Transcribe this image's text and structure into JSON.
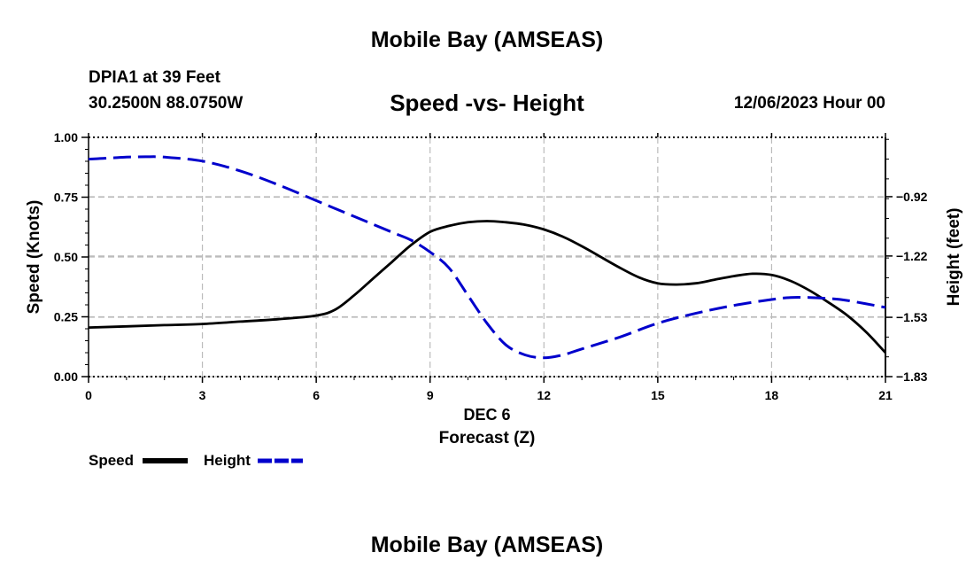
{
  "header": {
    "title": "Mobile Bay (AMSEAS)",
    "station": "DPIA1 at 39 Feet",
    "location": "30.2500N  88.0750W",
    "subtitle": "Speed -vs- Height",
    "datetime": "12/06/2023 Hour 00"
  },
  "footer": {
    "repeat_title": "Mobile Bay (AMSEAS)"
  },
  "chart_data": {
    "type": "line",
    "title": "Speed -vs- Height",
    "xlabel": "Forecast (Z)",
    "x_date_label": "DEC 6",
    "ylabel": "Speed (Knots)",
    "y2label": "Height (feet)",
    "xlim": [
      0,
      21
    ],
    "ylim": [
      0,
      1
    ],
    "y2lim": [
      -1.83,
      -0.62
    ],
    "xticks": [
      0,
      3,
      6,
      9,
      12,
      15,
      18,
      21
    ],
    "xtick_labels": [
      "0",
      "3",
      "6",
      "9",
      "12",
      "15",
      "18",
      "21"
    ],
    "yticks": [
      0,
      0.25,
      0.5,
      0.75,
      1.0
    ],
    "ytick_labels": [
      "0.00",
      "0.25",
      "0.50",
      "0.75",
      "1.00"
    ],
    "y2ticks": [
      -0.92,
      -1.22,
      -1.53,
      -1.83
    ],
    "y2tick_labels": [
      "−0.92",
      "−1.22",
      "−1.53",
      "−1.83"
    ],
    "grid": true,
    "legend_position": "bottom-left",
    "series": [
      {
        "name": "Speed",
        "axis": "left",
        "color": "#000000",
        "style": "solid",
        "x": [
          0,
          1,
          2,
          3,
          4,
          5,
          6,
          6.5,
          7,
          7.5,
          8,
          8.5,
          9,
          9.5,
          10,
          10.5,
          11,
          11.5,
          12,
          12.5,
          13,
          13.5,
          14,
          14.5,
          15,
          15.5,
          16,
          16.5,
          17,
          17.5,
          18,
          18.5,
          19,
          19.5,
          20,
          20.5,
          21
        ],
        "y": [
          0.205,
          0.21,
          0.215,
          0.22,
          0.23,
          0.24,
          0.255,
          0.28,
          0.34,
          0.41,
          0.48,
          0.55,
          0.605,
          0.63,
          0.645,
          0.65,
          0.645,
          0.635,
          0.615,
          0.585,
          0.545,
          0.5,
          0.455,
          0.415,
          0.39,
          0.385,
          0.39,
          0.405,
          0.42,
          0.43,
          0.425,
          0.4,
          0.36,
          0.31,
          0.255,
          0.185,
          0.1
        ]
      },
      {
        "name": "Height",
        "axis": "right",
        "color": "#0000cc",
        "style": "dashed",
        "x": [
          0,
          0.5,
          1,
          1.5,
          2,
          3,
          4,
          5,
          6,
          7,
          8,
          8.5,
          9,
          9.5,
          10,
          10.5,
          11,
          11.5,
          12,
          12.5,
          13,
          14,
          15,
          16,
          17,
          18,
          18.5,
          19,
          19.5,
          20,
          21
        ],
        "y": [
          -0.73,
          -0.725,
          -0.72,
          -0.718,
          -0.72,
          -0.74,
          -0.79,
          -0.86,
          -0.94,
          -1.02,
          -1.1,
          -1.14,
          -1.2,
          -1.28,
          -1.42,
          -1.56,
          -1.67,
          -1.72,
          -1.735,
          -1.72,
          -1.69,
          -1.63,
          -1.56,
          -1.51,
          -1.47,
          -1.44,
          -1.43,
          -1.43,
          -1.435,
          -1.445,
          -1.48
        ]
      }
    ]
  }
}
